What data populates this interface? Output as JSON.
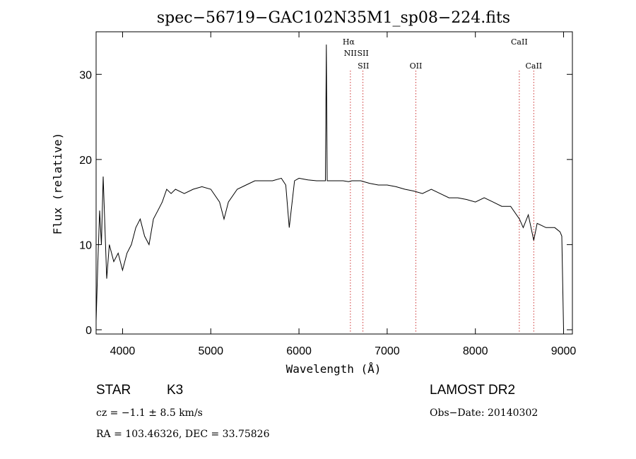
{
  "chart_data": {
    "type": "line",
    "title": "spec−56719−GAC102N35M1_sp08−224.fits",
    "xlabel": "Wavelength (Å)",
    "ylabel": "Flux (relative)",
    "xlim": [
      3700,
      9100
    ],
    "ylim": [
      -0.5,
      35
    ],
    "xticks": [
      4000,
      5000,
      6000,
      7000,
      8000,
      9000
    ],
    "yticks": [
      0,
      10,
      20,
      30
    ],
    "grid": false,
    "legend": "none",
    "series": [
      {
        "color": "#000000",
        "x": [
          3700,
          3720,
          3740,
          3760,
          3780,
          3800,
          3820,
          3850,
          3900,
          3950,
          4000,
          4050,
          4100,
          4150,
          4200,
          4250,
          4300,
          4350,
          4400,
          4450,
          4500,
          4550,
          4600,
          4700,
          4800,
          4900,
          5000,
          5100,
          5150,
          5200,
          5300,
          5400,
          5500,
          5600,
          5700,
          5800,
          5850,
          5890,
          5950,
          6000,
          6100,
          6200,
          6300,
          6310,
          6320,
          6400,
          6500,
          6563,
          6600,
          6700,
          6800,
          6900,
          7000,
          7100,
          7200,
          7300,
          7400,
          7500,
          7600,
          7700,
          7800,
          7900,
          8000,
          8100,
          8200,
          8300,
          8400,
          8500,
          8542,
          8600,
          8662,
          8700,
          8800,
          8900,
          8960,
          8980,
          9000
        ],
        "y": [
          1,
          8,
          14,
          10,
          18,
          12,
          6,
          10,
          8,
          9,
          7,
          9,
          10,
          12,
          13,
          11,
          10,
          13,
          14,
          15,
          16.5,
          16,
          16.5,
          16,
          16.5,
          16.8,
          16.5,
          15,
          13,
          15,
          16.5,
          17,
          17.5,
          17.5,
          17.5,
          17.8,
          17,
          12,
          17.5,
          17.8,
          17.6,
          17.5,
          17.5,
          33.5,
          17.5,
          17.5,
          17.5,
          17.4,
          17.5,
          17.5,
          17.2,
          17,
          17,
          16.8,
          16.5,
          16.3,
          16,
          16.5,
          16,
          15.5,
          15.5,
          15.3,
          15,
          15.5,
          15,
          14.5,
          14.5,
          13,
          12,
          13.5,
          10.5,
          12.5,
          12,
          12,
          11.5,
          11,
          0
        ]
      }
    ],
    "line_markers": [
      {
        "label": "Hα",
        "wavelength": 6563,
        "row": 1,
        "marked": false
      },
      {
        "label": "NII",
        "wavelength": 6583,
        "row": 2,
        "marked": true
      },
      {
        "label": "SII",
        "wavelength": 6725,
        "row": 2,
        "marked": true
      },
      {
        "label": "SII",
        "wavelength": 6730,
        "row": 3,
        "marked": false
      },
      {
        "label": "OII",
        "wavelength": 7325,
        "row": 3,
        "marked": true
      },
      {
        "label": "CaII",
        "wavelength": 8498,
        "row": 1,
        "marked": true
      },
      {
        "label": "CaII",
        "wavelength": 8662,
        "row": 3,
        "marked": true
      }
    ],
    "marker_color": "#cc3333"
  },
  "info": {
    "class": "STAR",
    "subclass": "K3",
    "survey": "LAMOST DR2",
    "cz": "cz = −1.1 ± 8.5 km/s",
    "obs_date": "Obs−Date: 20140302",
    "coords": "RA = 103.46326, DEC =  33.75826"
  }
}
